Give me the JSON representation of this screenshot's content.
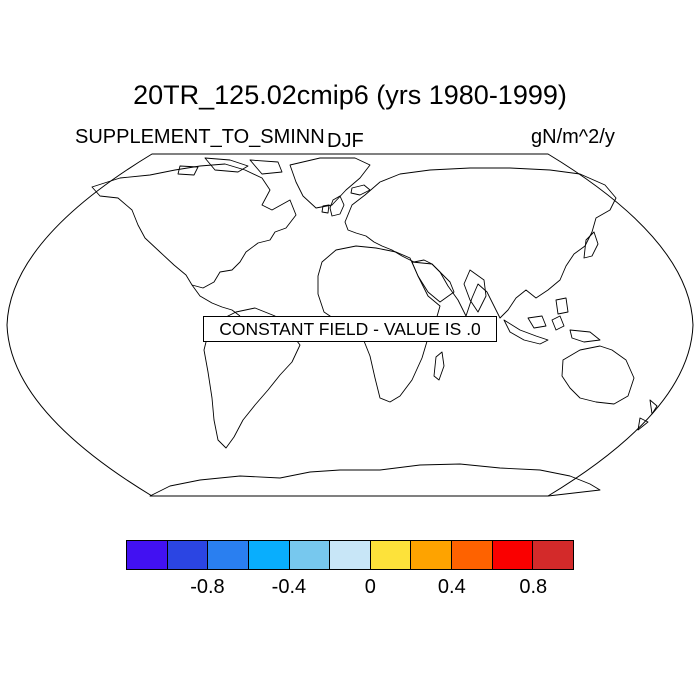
{
  "title": "20TR_125.02cmip6 (yrs 1980-1999)",
  "left_label": "SUPPLEMENT_TO_SMINN",
  "center_label": "DJF",
  "units": "gN/m^2/y",
  "constant_field_text": "CONSTANT FIELD - VALUE IS .0",
  "colorbar": {
    "colors": [
      "#4211f2",
      "#2b45e3",
      "#2a7ff0",
      "#09aefd",
      "#77c8ee",
      "#c8e6f7",
      "#fde23a",
      "#fea300",
      "#fe6200",
      "#fa0000",
      "#d32a2a"
    ],
    "tick_labels": [
      "-0.8",
      "-0.4",
      "0",
      "0.4",
      "0.8"
    ]
  },
  "map": {
    "projection": "Robinson",
    "coastline_color": "#000000",
    "fill_color": "#ffffff"
  }
}
